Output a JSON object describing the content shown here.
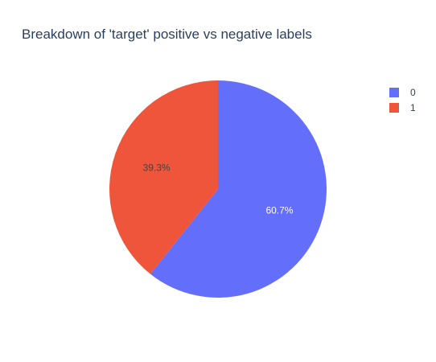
{
  "chart_data": {
    "type": "pie",
    "title": "Breakdown of 'target' positive vs negative labels",
    "labels": [
      "0",
      "1"
    ],
    "values": [
      60.7,
      39.3
    ],
    "value_labels": [
      "60.7%",
      "39.3%"
    ],
    "colors": [
      "#636efa",
      "#ef553b"
    ],
    "label_colors": [
      "#ffffff",
      "#444444"
    ],
    "legend_position": "top-right"
  }
}
